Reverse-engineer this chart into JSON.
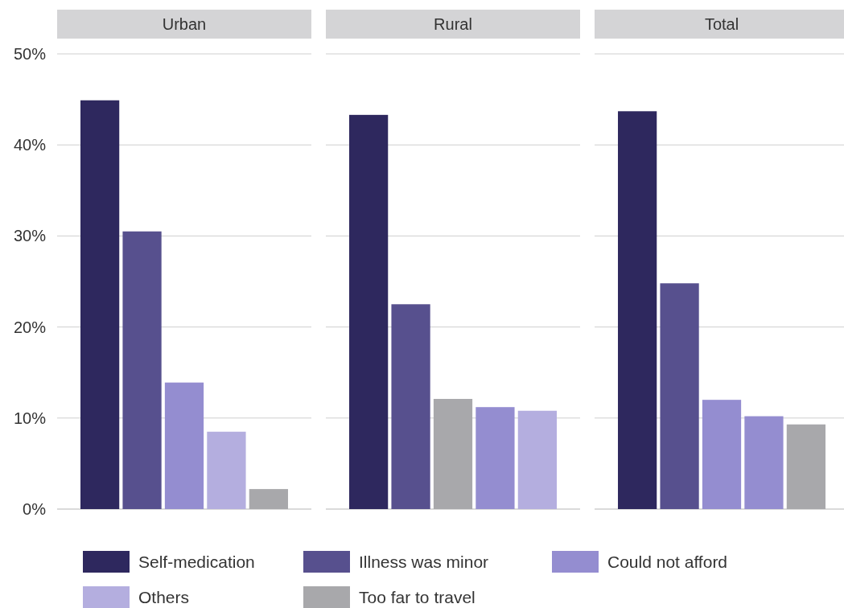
{
  "chart_data": {
    "type": "bar",
    "categories": [
      "Urban",
      "Rural",
      "Total"
    ],
    "series": [
      {
        "name": "Self-medication",
        "color": "#2e285e",
        "values": [
          44.9,
          43.3,
          43.7
        ]
      },
      {
        "name": "Illness was minor",
        "color": "#57508e",
        "values": [
          30.5,
          22.5,
          24.8
        ]
      },
      {
        "color": "#a8a8ab",
        "values": [
          null,
          12.1,
          null
        ]
      },
      {
        "name": "Could not afford",
        "color": "#948dd0",
        "values": [
          13.9,
          11.2,
          12.0
        ]
      },
      {
        "name": "Others",
        "color": "#b4aedf",
        "colors": [
          "#b4aedf",
          "#b4aedf",
          "#948dd0"
        ],
        "values": [
          8.5,
          10.8,
          10.2
        ]
      },
      {
        "name": "Too far to travel",
        "color": "#a8a8ab",
        "values": [
          2.2,
          null,
          9.3
        ]
      }
    ],
    "ylim": [
      0,
      50
    ],
    "yticks": [
      {
        "value": 0,
        "label": "0%"
      },
      {
        "value": 10,
        "label": "10%"
      },
      {
        "value": 20,
        "label": "20%"
      },
      {
        "value": 30,
        "label": "30%"
      },
      {
        "value": 40,
        "label": "40%"
      },
      {
        "value": 50,
        "label": "50%"
      }
    ],
    "grid": "y",
    "legend": "bottom"
  }
}
